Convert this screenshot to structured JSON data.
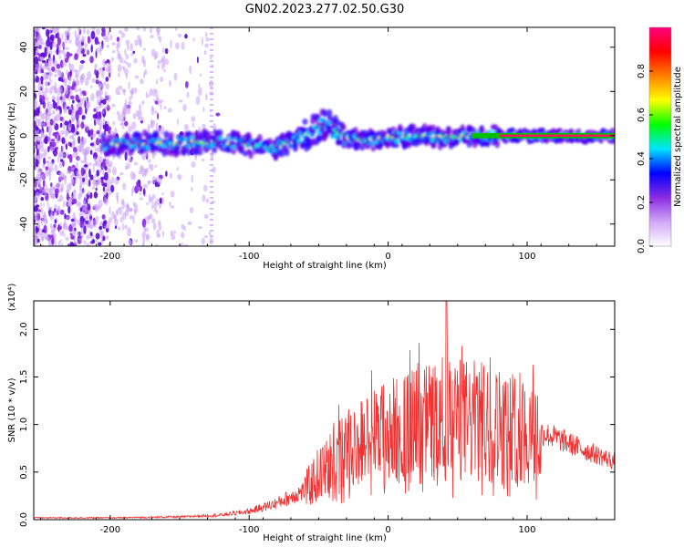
{
  "title": "GN02.2023.277.02.50.G30",
  "chart_data": [
    {
      "type": "heatmap",
      "title": "GN02.2023.277.02.50.G30",
      "xlabel": "Height of straight line (km)",
      "ylabel": "Frequency (Hz)",
      "xlim": [
        -255,
        163
      ],
      "ylim": [
        -50,
        49
      ],
      "x_ticks": [
        -200,
        -100,
        0,
        100
      ],
      "y_ticks": [
        -40,
        -20,
        0,
        20,
        40
      ],
      "x_tick_labels": [
        "-200",
        "-100",
        "0",
        "100"
      ],
      "y_tick_labels": [
        "-40",
        "-20",
        "0",
        "20",
        "40"
      ],
      "ridge": [
        {
          "x": -200,
          "y": -4
        },
        {
          "x": -180,
          "y": -3
        },
        {
          "x": -160,
          "y": -4
        },
        {
          "x": -140,
          "y": -3
        },
        {
          "x": -120,
          "y": -3
        },
        {
          "x": -100,
          "y": -4
        },
        {
          "x": -85,
          "y": -6
        },
        {
          "x": -75,
          "y": -4
        },
        {
          "x": -60,
          "y": 0
        },
        {
          "x": -50,
          "y": 4
        },
        {
          "x": -45,
          "y": 6
        },
        {
          "x": -40,
          "y": 3
        },
        {
          "x": -30,
          "y": -1
        },
        {
          "x": -20,
          "y": -2
        },
        {
          "x": -10,
          "y": -2
        },
        {
          "x": 0,
          "y": -1
        },
        {
          "x": 20,
          "y": 0
        },
        {
          "x": 40,
          "y": -1
        },
        {
          "x": 60,
          "y": 0
        },
        {
          "x": 80,
          "y": 0
        },
        {
          "x": 100,
          "y": 0
        },
        {
          "x": 120,
          "y": 0
        },
        {
          "x": 163,
          "y": 0
        }
      ],
      "colorbar": {
        "label": "Normalized spectral amplitude",
        "range": [
          0.0,
          1.0
        ],
        "ticks": [
          0.0,
          0.2,
          0.4,
          0.6,
          0.8
        ],
        "tick_labels": [
          "0.0",
          "0.2",
          "0.4",
          "0.6",
          "0.8"
        ],
        "colors": [
          "#ffffff",
          "#d2a8f8",
          "#8a2be2",
          "#0000ff",
          "#00e5ff",
          "#00ff00",
          "#ffff00",
          "#ff8000",
          "#ff0000",
          "#ff0080"
        ]
      }
    },
    {
      "type": "line",
      "xlabel": "Height of straight line (km)",
      "ylabel": "SNR (10 * v/v)",
      "y_multiplier": "(x10⁴)",
      "xlim": [
        -255,
        163
      ],
      "ylim": [
        0,
        2.3
      ],
      "x_ticks": [
        -200,
        -100,
        0,
        100
      ],
      "y_ticks": [
        0.0,
        0.5,
        1.0,
        1.5,
        2.0
      ],
      "x_tick_labels": [
        "-200",
        "-100",
        "0",
        "100"
      ],
      "y_tick_labels": [
        "0.0",
        "0.5",
        "1.0",
        "1.5",
        "2.0"
      ],
      "series_color": "#f03232",
      "envelope": [
        {
          "x": -255,
          "y": 0.02
        },
        {
          "x": -200,
          "y": 0.02
        },
        {
          "x": -150,
          "y": 0.03
        },
        {
          "x": -120,
          "y": 0.05
        },
        {
          "x": -100,
          "y": 0.09
        },
        {
          "x": -80,
          "y": 0.18
        },
        {
          "x": -60,
          "y": 0.32
        },
        {
          "x": -50,
          "y": 0.5
        },
        {
          "x": -40,
          "y": 0.62
        },
        {
          "x": -30,
          "y": 0.75
        },
        {
          "x": -20,
          "y": 0.85
        },
        {
          "x": -10,
          "y": 0.92
        },
        {
          "x": 0,
          "y": 0.98
        },
        {
          "x": 20,
          "y": 1.05
        },
        {
          "x": 40,
          "y": 1.12
        },
        {
          "x": 60,
          "y": 1.1
        },
        {
          "x": 80,
          "y": 1.05
        },
        {
          "x": 100,
          "y": 0.98
        },
        {
          "x": 120,
          "y": 0.88
        },
        {
          "x": 140,
          "y": 0.75
        },
        {
          "x": 163,
          "y": 0.62
        }
      ],
      "peak": {
        "x": 42,
        "y": 2.3
      }
    }
  ]
}
